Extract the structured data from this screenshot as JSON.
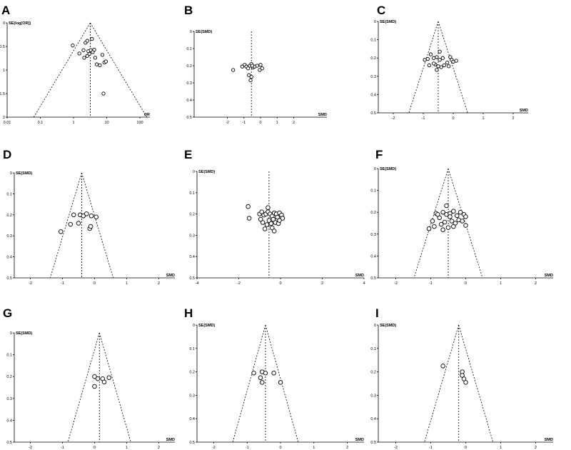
{
  "chart_data": [
    {
      "panel_label": "A",
      "type": "scatter",
      "xlabel": "OR",
      "ylabel": "SE(log[OR])",
      "xscale": "log",
      "xlim": [
        0.01,
        200
      ],
      "ylim": [
        0,
        2
      ],
      "y_inverted": true,
      "xticks": [
        0.01,
        0.1,
        1,
        10,
        100
      ],
      "xtick_labels": [
        "0.01",
        "0.1",
        "1",
        "10",
        "100"
      ],
      "yticks": [
        0,
        0.5,
        1,
        1.5,
        2
      ],
      "ytick_labels": [
        "0",
        "0.5",
        "1",
        "1.5",
        "2"
      ],
      "center": 3.2,
      "points": [
        {
          "x": 0.95,
          "y": 0.48
        },
        {
          "x": 1.5,
          "y": 0.65
        },
        {
          "x": 2.0,
          "y": 0.58
        },
        {
          "x": 2.3,
          "y": 0.42
        },
        {
          "x": 2.6,
          "y": 0.38
        },
        {
          "x": 2.8,
          "y": 0.6
        },
        {
          "x": 2.1,
          "y": 0.74
        },
        {
          "x": 2.6,
          "y": 0.7
        },
        {
          "x": 3.0,
          "y": 0.66
        },
        {
          "x": 3.3,
          "y": 0.58
        },
        {
          "x": 3.8,
          "y": 0.62
        },
        {
          "x": 4.2,
          "y": 0.57
        },
        {
          "x": 4.5,
          "y": 0.74
        },
        {
          "x": 5.0,
          "y": 0.88
        },
        {
          "x": 6.2,
          "y": 0.9
        },
        {
          "x": 7.4,
          "y": 0.68
        },
        {
          "x": 8.5,
          "y": 0.84
        },
        {
          "x": 9.5,
          "y": 0.82
        },
        {
          "x": 3.6,
          "y": 0.34
        },
        {
          "x": 8.0,
          "y": 1.5
        }
      ]
    },
    {
      "panel_label": "B",
      "type": "scatter",
      "xlabel": "SMD",
      "ylabel": "SE(SMD)",
      "xlim": [
        -4,
        4
      ],
      "ylim": [
        0,
        0.5
      ],
      "y_inverted": true,
      "xticks": [
        -2,
        -1,
        0,
        1,
        2
      ],
      "xtick_labels": [
        "-2",
        "-1",
        "0",
        "1",
        "2"
      ],
      "yticks": [
        0,
        0.1,
        0.2,
        0.3,
        0.4,
        0.5
      ],
      "ytick_labels": [
        "0",
        "0.1",
        "0.2",
        "0.3",
        "0.4",
        "0.5"
      ],
      "center": -0.55,
      "show_funnel": false,
      "points": [
        {
          "x": -1.65,
          "y": 0.225
        },
        {
          "x": -1.1,
          "y": 0.205
        },
        {
          "x": -0.95,
          "y": 0.195
        },
        {
          "x": -0.85,
          "y": 0.205
        },
        {
          "x": -0.75,
          "y": 0.215
        },
        {
          "x": -0.65,
          "y": 0.2
        },
        {
          "x": -0.55,
          "y": 0.19
        },
        {
          "x": -0.45,
          "y": 0.21
        },
        {
          "x": -0.35,
          "y": 0.205
        },
        {
          "x": -0.2,
          "y": 0.2
        },
        {
          "x": 0.0,
          "y": 0.195
        },
        {
          "x": 0.1,
          "y": 0.215
        },
        {
          "x": -0.05,
          "y": 0.225
        },
        {
          "x": -0.7,
          "y": 0.255
        },
        {
          "x": -0.55,
          "y": 0.265
        },
        {
          "x": -0.6,
          "y": 0.285
        },
        {
          "x": -0.5,
          "y": 0.2
        }
      ]
    },
    {
      "panel_label": "C",
      "type": "scatter",
      "xlabel": "SMD",
      "ylabel": "SE(SMD)",
      "xlim": [
        -2.5,
        2.5
      ],
      "ylim": [
        0,
        0.5
      ],
      "y_inverted": true,
      "xticks": [
        -2,
        -1,
        0,
        1,
        2
      ],
      "xtick_labels": [
        "-2",
        "-1",
        "0",
        "1",
        "2"
      ],
      "yticks": [
        0,
        0.1,
        0.2,
        0.3,
        0.4,
        0.5
      ],
      "ytick_labels": [
        "0",
        "0.1",
        "0.2",
        "0.3",
        "0.4",
        "0.5"
      ],
      "center": -0.5,
      "points": [
        {
          "x": -0.95,
          "y": 0.21
        },
        {
          "x": -0.85,
          "y": 0.205
        },
        {
          "x": -0.75,
          "y": 0.18
        },
        {
          "x": -0.65,
          "y": 0.2
        },
        {
          "x": -0.55,
          "y": 0.195
        },
        {
          "x": -0.45,
          "y": 0.21
        },
        {
          "x": -0.35,
          "y": 0.2
        },
        {
          "x": -0.2,
          "y": 0.225
        },
        {
          "x": -0.1,
          "y": 0.195
        },
        {
          "x": -0.05,
          "y": 0.21
        },
        {
          "x": 0.0,
          "y": 0.22
        },
        {
          "x": 0.1,
          "y": 0.215
        },
        {
          "x": -0.8,
          "y": 0.24
        },
        {
          "x": -0.6,
          "y": 0.235
        },
        {
          "x": -0.5,
          "y": 0.245
        },
        {
          "x": -0.4,
          "y": 0.25
        },
        {
          "x": -0.3,
          "y": 0.24
        },
        {
          "x": -0.15,
          "y": 0.245
        },
        {
          "x": -0.45,
          "y": 0.165
        },
        {
          "x": -0.55,
          "y": 0.265
        },
        {
          "x": -0.65,
          "y": 0.23
        }
      ]
    },
    {
      "panel_label": "D",
      "type": "scatter",
      "xlabel": "SMD",
      "ylabel": "SE(SMD)",
      "xlim": [
        -2.5,
        2.5
      ],
      "ylim": [
        0,
        0.5
      ],
      "y_inverted": true,
      "xticks": [
        -2,
        -1,
        0,
        1,
        2
      ],
      "xtick_labels": [
        "-2",
        "-1",
        "0",
        "1",
        "2"
      ],
      "yticks": [
        0,
        0.1,
        0.2,
        0.3,
        0.4,
        0.5
      ],
      "ytick_labels": [
        "0",
        "0.1",
        "0.2",
        "0.3",
        "0.4",
        "0.5"
      ],
      "center": -0.4,
      "points": [
        {
          "x": -1.05,
          "y": 0.28
        },
        {
          "x": -0.75,
          "y": 0.245
        },
        {
          "x": -0.65,
          "y": 0.2
        },
        {
          "x": -0.45,
          "y": 0.2
        },
        {
          "x": -0.35,
          "y": 0.205
        },
        {
          "x": -0.25,
          "y": 0.195
        },
        {
          "x": -0.1,
          "y": 0.205
        },
        {
          "x": 0.05,
          "y": 0.21
        },
        {
          "x": -0.15,
          "y": 0.265
        },
        {
          "x": -0.12,
          "y": 0.255
        },
        {
          "x": -0.5,
          "y": 0.24
        }
      ]
    },
    {
      "panel_label": "E",
      "type": "scatter",
      "xlabel": "SMD",
      "ylabel": "SE(SMD)",
      "xlim": [
        -4,
        4
      ],
      "ylim": [
        0,
        0.5
      ],
      "y_inverted": true,
      "xticks": [
        -4,
        -2,
        0,
        2,
        4
      ],
      "xtick_labels": [
        "-4",
        "-2",
        "0",
        "2",
        "4"
      ],
      "yticks": [
        0,
        0.1,
        0.2,
        0.3,
        0.4,
        0.5
      ],
      "ytick_labels": [
        "0",
        "0.1",
        "0.2",
        "0.3",
        "0.4",
        "0.5"
      ],
      "center": -0.55,
      "show_funnel": false,
      "points": [
        {
          "x": -1.55,
          "y": 0.165
        },
        {
          "x": -1.5,
          "y": 0.22
        },
        {
          "x": -1.0,
          "y": 0.2
        },
        {
          "x": -0.9,
          "y": 0.19
        },
        {
          "x": -0.8,
          "y": 0.205
        },
        {
          "x": -0.7,
          "y": 0.2
        },
        {
          "x": -0.6,
          "y": 0.19
        },
        {
          "x": -0.5,
          "y": 0.2
        },
        {
          "x": -0.4,
          "y": 0.21
        },
        {
          "x": -0.3,
          "y": 0.195
        },
        {
          "x": -0.2,
          "y": 0.2
        },
        {
          "x": -0.05,
          "y": 0.195
        },
        {
          "x": 0.05,
          "y": 0.205
        },
        {
          "x": 0.1,
          "y": 0.22
        },
        {
          "x": -0.85,
          "y": 0.24
        },
        {
          "x": -0.65,
          "y": 0.25
        },
        {
          "x": -0.45,
          "y": 0.245
        },
        {
          "x": -0.25,
          "y": 0.24
        },
        {
          "x": -0.1,
          "y": 0.245
        },
        {
          "x": -0.95,
          "y": 0.225
        },
        {
          "x": -0.55,
          "y": 0.23
        },
        {
          "x": -0.35,
          "y": 0.225
        },
        {
          "x": -0.75,
          "y": 0.27
        },
        {
          "x": -0.4,
          "y": 0.265
        },
        {
          "x": -0.6,
          "y": 0.17
        },
        {
          "x": -0.15,
          "y": 0.215
        },
        {
          "x": -0.05,
          "y": 0.23
        },
        {
          "x": -0.3,
          "y": 0.28
        }
      ]
    },
    {
      "panel_label": "F",
      "type": "scatter",
      "xlabel": "SMD",
      "ylabel": "SE(SMD)",
      "xlim": [
        -2.5,
        2.5
      ],
      "ylim": [
        0,
        0.5
      ],
      "y_inverted": true,
      "xticks": [
        -2,
        -1,
        0,
        1,
        2
      ],
      "xtick_labels": [
        "-2",
        "-1",
        "0",
        "1",
        "2"
      ],
      "yticks": [
        0,
        0.1,
        0.2,
        0.3,
        0.4,
        0.5
      ],
      "ytick_labels": [
        "0",
        "0.1",
        "0.2",
        "0.3",
        "0.4",
        "0.5"
      ],
      "center": -0.5,
      "points": [
        {
          "x": -1.05,
          "y": 0.275
        },
        {
          "x": -0.95,
          "y": 0.24
        },
        {
          "x": -0.85,
          "y": 0.205
        },
        {
          "x": -0.75,
          "y": 0.225
        },
        {
          "x": -0.65,
          "y": 0.2
        },
        {
          "x": -0.55,
          "y": 0.21
        },
        {
          "x": -0.45,
          "y": 0.205
        },
        {
          "x": -0.35,
          "y": 0.195
        },
        {
          "x": -0.25,
          "y": 0.215
        },
        {
          "x": -0.15,
          "y": 0.2
        },
        {
          "x": -0.05,
          "y": 0.21
        },
        {
          "x": 0.0,
          "y": 0.22
        },
        {
          "x": -0.9,
          "y": 0.265
        },
        {
          "x": -0.7,
          "y": 0.255
        },
        {
          "x": -0.6,
          "y": 0.245
        },
        {
          "x": -0.4,
          "y": 0.24
        },
        {
          "x": -0.3,
          "y": 0.25
        },
        {
          "x": -0.2,
          "y": 0.235
        },
        {
          "x": -0.1,
          "y": 0.24
        },
        {
          "x": -0.55,
          "y": 0.17
        },
        {
          "x": -0.65,
          "y": 0.28
        },
        {
          "x": -0.5,
          "y": 0.27
        },
        {
          "x": -0.35,
          "y": 0.265
        },
        {
          "x": 0.0,
          "y": 0.26
        },
        {
          "x": -0.8,
          "y": 0.21
        },
        {
          "x": -0.45,
          "y": 0.22
        }
      ]
    },
    {
      "panel_label": "G",
      "type": "scatter",
      "xlabel": "SMD",
      "ylabel": "SE(SMD)",
      "xlim": [
        -2.5,
        2.5
      ],
      "ylim": [
        0,
        0.5
      ],
      "y_inverted": true,
      "xticks": [
        -2,
        -1,
        0,
        1,
        2
      ],
      "xtick_labels": [
        "-2",
        "-1",
        "0",
        "1",
        "2"
      ],
      "yticks": [
        0,
        0.1,
        0.2,
        0.3,
        0.4,
        0.5
      ],
      "ytick_labels": [
        "0",
        "0.1",
        "0.2",
        "0.3",
        "0.4",
        "0.5"
      ],
      "center": 0.15,
      "points": [
        {
          "x": 0.0,
          "y": 0.2
        },
        {
          "x": 0.1,
          "y": 0.21
        },
        {
          "x": 0.25,
          "y": 0.21
        },
        {
          "x": 0.45,
          "y": 0.205
        },
        {
          "x": 0.3,
          "y": 0.225
        },
        {
          "x": 0.0,
          "y": 0.245
        }
      ]
    },
    {
      "panel_label": "H",
      "type": "scatter",
      "xlabel": "SMD",
      "ylabel": "SE(SMD)",
      "xlim": [
        -2.5,
        2.5
      ],
      "ylim": [
        0,
        0.5
      ],
      "y_inverted": true,
      "xticks": [
        -2,
        -1,
        0,
        1,
        2
      ],
      "xtick_labels": [
        "-2",
        "-1",
        "0",
        "1",
        "2"
      ],
      "yticks": [
        0,
        0.1,
        0.2,
        0.3,
        0.4,
        0.5
      ],
      "ytick_labels": [
        "0",
        "0.1",
        "0.2",
        "0.3",
        "0.4",
        "0.5"
      ],
      "center": -0.45,
      "points": [
        {
          "x": -0.8,
          "y": 0.205
        },
        {
          "x": -0.55,
          "y": 0.2
        },
        {
          "x": -0.45,
          "y": 0.205
        },
        {
          "x": -0.2,
          "y": 0.205
        },
        {
          "x": -0.6,
          "y": 0.225
        },
        {
          "x": -0.55,
          "y": 0.245
        },
        {
          "x": 0.0,
          "y": 0.245
        }
      ]
    },
    {
      "panel_label": "I",
      "type": "scatter",
      "xlabel": "SMD",
      "ylabel": "SE(SMD)",
      "xlim": [
        -2.5,
        2.5
      ],
      "ylim": [
        0,
        0.5
      ],
      "y_inverted": true,
      "xticks": [
        -2,
        -1,
        0,
        1,
        2
      ],
      "xtick_labels": [
        "-2",
        "-1",
        "0",
        "1",
        "2"
      ],
      "yticks": [
        0,
        0.1,
        0.2,
        0.3,
        0.4,
        0.5
      ],
      "ytick_labels": [
        "0",
        "0.1",
        "0.2",
        "0.3",
        "0.4",
        "0.5"
      ],
      "center": -0.2,
      "points": [
        {
          "x": -0.65,
          "y": 0.175
        },
        {
          "x": -0.1,
          "y": 0.2
        },
        {
          "x": -0.1,
          "y": 0.215
        },
        {
          "x": -0.05,
          "y": 0.23
        },
        {
          "x": 0.0,
          "y": 0.245
        }
      ]
    }
  ]
}
